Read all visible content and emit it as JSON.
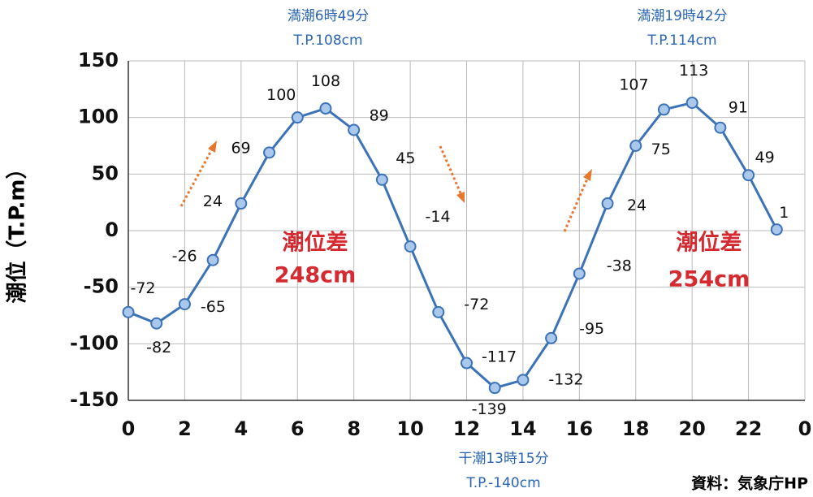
{
  "chart_data": {
    "type": "line",
    "y_label": "潮位（T.P.m）",
    "x": [
      0,
      1,
      2,
      3,
      4,
      5,
      6,
      7,
      8,
      9,
      10,
      11,
      12,
      13,
      14,
      15,
      16,
      17,
      18,
      19,
      20,
      21,
      22,
      23
    ],
    "series": [
      {
        "color": "#3c72b8",
        "values": [
          -72,
          -82,
          -65,
          -26,
          24,
          69,
          100,
          108,
          89,
          45,
          -14,
          -72,
          -117,
          -139,
          -132,
          -95,
          -38,
          24,
          75,
          107,
          113,
          91,
          49,
          1
        ]
      }
    ],
    "xlim": [
      0,
      24
    ],
    "xticks": [
      0,
      2,
      4,
      6,
      8,
      10,
      12,
      14,
      16,
      18,
      20,
      22,
      {
        "value": 24,
        "label": "0"
      }
    ],
    "ylim": [
      -150,
      150
    ],
    "yticks": [
      -150,
      -100,
      -50,
      0,
      50,
      100,
      150
    ],
    "grid": true,
    "annotations": {
      "high1": [
        "満潮6時49分",
        "T.P.108cm"
      ],
      "high2": [
        "満潮19時42分",
        "T.P.114cm"
      ],
      "low": [
        "干潮13時15分",
        "T.P.-140cm"
      ],
      "diff1": [
        "潮位差",
        "248cm"
      ],
      "diff2": [
        "潮位差",
        "254cm"
      ]
    },
    "source": "資料：気象庁HP"
  }
}
